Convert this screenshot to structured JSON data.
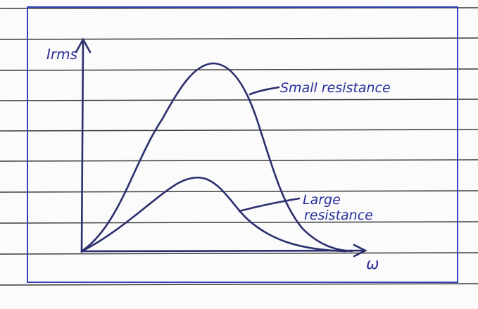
{
  "axes": {
    "y_label": "Irms",
    "x_label": "ω"
  },
  "curves": [
    {
      "label_lines": [
        "Small resistance"
      ]
    },
    {
      "label_lines": [
        "Large",
        "resistance"
      ]
    }
  ]
}
